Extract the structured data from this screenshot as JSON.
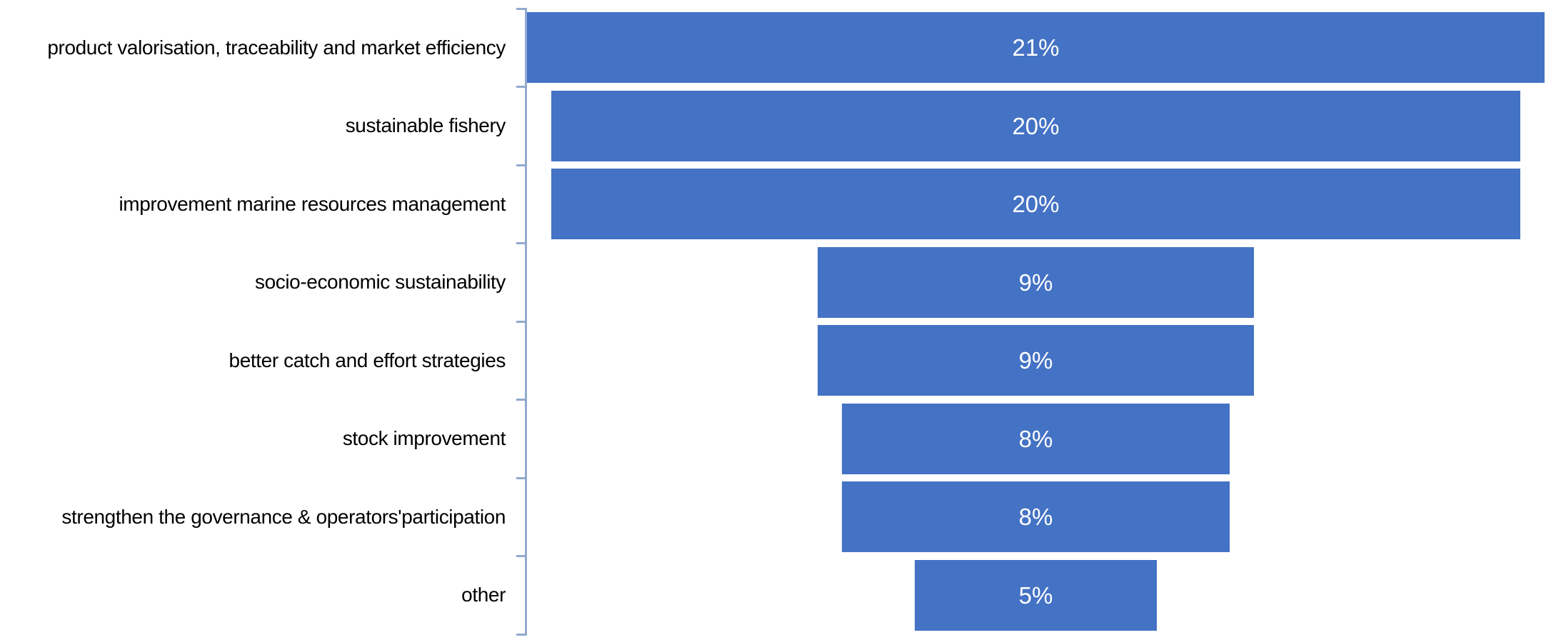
{
  "chart_data": {
    "type": "bar",
    "subtype": "funnel",
    "orientation": "horizontal",
    "title": "",
    "xlabel": "",
    "ylabel": "",
    "categories": [
      "product valorisation, traceability and market efficiency",
      "sustainable fishery",
      "improvement marine resources management",
      "socio-economic sustainability",
      "better catch and effort strategies",
      "stock improvement",
      "strengthen the governance & operators'participation",
      "other"
    ],
    "values": [
      21,
      20,
      20,
      9,
      9,
      8,
      8,
      5
    ],
    "unit": "%",
    "data_labels": [
      "21%",
      "20%",
      "20%",
      "9%",
      "9%",
      "8%",
      "8%",
      "5%"
    ],
    "xlim": [
      0,
      21
    ],
    "grid": false,
    "legend": false,
    "bars_centered": true,
    "bar_color": "#4472C4",
    "data_label_color": "#FFFFFF",
    "category_label_color": "#000000",
    "axis_line_color": "#92A9CE",
    "background_color": "#FFFFFF"
  }
}
